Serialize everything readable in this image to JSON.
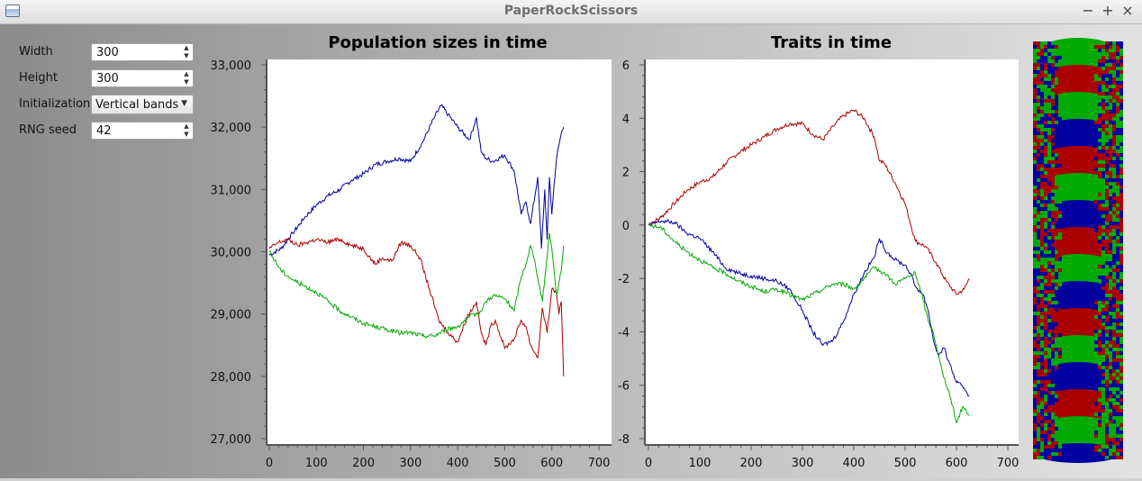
{
  "window": {
    "title": "PaperRockScissors",
    "minimize_label": "−",
    "maximize_label": "+",
    "close_label": "×"
  },
  "controls": {
    "width": {
      "label": "Width",
      "value": "300"
    },
    "height": {
      "label": "Height",
      "value": "300"
    },
    "initialization": {
      "label": "Initialization",
      "value": "Vertical bands"
    },
    "rng_seed": {
      "label": "RNG seed",
      "value": "42"
    }
  },
  "colors": {
    "series1": "#0000a0",
    "series2": "#aa0000",
    "series3": "#00aa00"
  },
  "chart_data": [
    {
      "type": "line",
      "title": "Population sizes in time",
      "xlabel": "",
      "ylabel": "",
      "xlim": [
        0,
        700
      ],
      "ylim": [
        27000,
        33000
      ],
      "x_ticks": [
        0,
        100,
        200,
        300,
        400,
        500,
        600,
        700
      ],
      "x_tick_labels": [
        "0",
        "100",
        "200",
        "300",
        "400",
        "500",
        "600",
        "700"
      ],
      "y_ticks": [
        27000,
        28000,
        29000,
        30000,
        31000,
        32000,
        33000
      ],
      "y_tick_labels": [
        "27,000",
        "28,000",
        "29,000",
        "30,000",
        "31,000",
        "32,000",
        "33,000"
      ],
      "series": [
        {
          "color": "#0000a0",
          "x": [
            0,
            25,
            50,
            75,
            100,
            125,
            150,
            175,
            200,
            225,
            250,
            275,
            300,
            325,
            350,
            365,
            380,
            400,
            425,
            440,
            450,
            460,
            475,
            500,
            520,
            535,
            545,
            555,
            570,
            578,
            585,
            590,
            595,
            600,
            605,
            610,
            620,
            625
          ],
          "y": [
            29950,
            30050,
            30300,
            30550,
            30750,
            30900,
            31000,
            31150,
            31250,
            31400,
            31450,
            31500,
            31450,
            31750,
            32150,
            32350,
            32200,
            32000,
            31800,
            32150,
            31600,
            31500,
            31450,
            31550,
            31300,
            30600,
            30800,
            30450,
            31200,
            30050,
            31000,
            30200,
            31200,
            30600,
            31100,
            31500,
            31900,
            32000
          ]
        },
        {
          "color": "#aa0000",
          "x": [
            0,
            20,
            40,
            60,
            80,
            100,
            120,
            150,
            175,
            200,
            225,
            240,
            260,
            280,
            300,
            320,
            340,
            360,
            380,
            400,
            420,
            440,
            450,
            460,
            470,
            480,
            500,
            520,
            535,
            545,
            555,
            570,
            580,
            590,
            600,
            610,
            615,
            620,
            625
          ],
          "y": [
            30050,
            30150,
            30200,
            30100,
            30150,
            30200,
            30150,
            30200,
            30100,
            30050,
            29800,
            29900,
            29850,
            30150,
            30100,
            29900,
            29400,
            28900,
            28700,
            28550,
            28950,
            29200,
            28700,
            28500,
            28800,
            28900,
            28450,
            28600,
            28900,
            28800,
            28500,
            28300,
            29100,
            28700,
            29400,
            29350,
            29000,
            29200,
            28000
          ]
        },
        {
          "color": "#00aa00",
          "x": [
            0,
            25,
            50,
            75,
            100,
            125,
            150,
            175,
            200,
            225,
            250,
            275,
            300,
            325,
            350,
            375,
            400,
            425,
            450,
            460,
            475,
            500,
            520,
            535,
            545,
            555,
            565,
            580,
            595,
            600,
            610,
            620,
            625
          ],
          "y": [
            30000,
            29700,
            29550,
            29450,
            29350,
            29200,
            29050,
            28950,
            28850,
            28800,
            28750,
            28700,
            28700,
            28650,
            28650,
            28750,
            28800,
            28950,
            29050,
            29200,
            29300,
            29250,
            29050,
            29600,
            29800,
            30100,
            29800,
            29200,
            30300,
            30050,
            29300,
            29700,
            30100
          ]
        }
      ]
    },
    {
      "type": "line",
      "title": "Traits in time",
      "xlabel": "",
      "ylabel": "",
      "xlim": [
        0,
        700
      ],
      "ylim": [
        -8,
        6
      ],
      "x_ticks": [
        0,
        100,
        200,
        300,
        400,
        500,
        600,
        700
      ],
      "x_tick_labels": [
        "0",
        "100",
        "200",
        "300",
        "400",
        "500",
        "600",
        "700"
      ],
      "y_ticks": [
        -8,
        -6,
        -4,
        -2,
        0,
        2,
        4,
        6
      ],
      "y_tick_labels": [
        "-8",
        "-6",
        "-4",
        "-2",
        "0",
        "2",
        "4",
        "6"
      ],
      "series": [
        {
          "color": "#aa0000",
          "x": [
            0,
            25,
            50,
            75,
            100,
            125,
            150,
            175,
            200,
            225,
            250,
            275,
            300,
            320,
            340,
            360,
            380,
            400,
            420,
            440,
            450,
            460,
            480,
            500,
            520,
            540,
            560,
            580,
            600,
            615,
            625
          ],
          "y": [
            0,
            0.3,
            0.8,
            1.3,
            1.6,
            1.8,
            2.3,
            2.7,
            3.0,
            3.3,
            3.6,
            3.8,
            3.8,
            3.4,
            3.2,
            3.7,
            4.1,
            4.3,
            4.0,
            3.3,
            2.4,
            2.3,
            1.6,
            0.8,
            -0.6,
            -0.8,
            -1.4,
            -2.1,
            -2.6,
            -2.4,
            -2.0
          ]
        },
        {
          "color": "#0000a0",
          "x": [
            0,
            25,
            50,
            75,
            100,
            125,
            150,
            175,
            200,
            225,
            250,
            275,
            300,
            320,
            340,
            360,
            380,
            400,
            420,
            440,
            450,
            460,
            480,
            500,
            510,
            520,
            535,
            545,
            555,
            565,
            575,
            585,
            600,
            615,
            625
          ],
          "y": [
            0,
            0.15,
            0.1,
            -0.3,
            -0.5,
            -1.0,
            -1.6,
            -1.8,
            -1.9,
            -2.0,
            -2.1,
            -2.4,
            -3.2,
            -4.0,
            -4.5,
            -4.3,
            -3.6,
            -2.6,
            -1.8,
            -1.2,
            -0.5,
            -0.9,
            -1.3,
            -1.5,
            -1.8,
            -2.3,
            -2.6,
            -3.2,
            -4.3,
            -4.9,
            -4.6,
            -5.1,
            -5.9,
            -6.1,
            -6.4
          ]
        },
        {
          "color": "#00aa00",
          "x": [
            0,
            25,
            50,
            75,
            100,
            125,
            150,
            175,
            200,
            225,
            250,
            275,
            300,
            320,
            340,
            360,
            380,
            400,
            420,
            440,
            460,
            480,
            500,
            520,
            535,
            545,
            555,
            565,
            575,
            585,
            600,
            612,
            625
          ],
          "y": [
            0,
            -0.1,
            -0.6,
            -1.0,
            -1.3,
            -1.6,
            -1.8,
            -2.1,
            -2.3,
            -2.5,
            -2.4,
            -2.6,
            -2.8,
            -2.6,
            -2.4,
            -2.2,
            -2.2,
            -2.4,
            -2.0,
            -1.6,
            -1.8,
            -2.2,
            -2.0,
            -1.8,
            -2.8,
            -3.6,
            -4.0,
            -4.9,
            -5.7,
            -6.2,
            -7.4,
            -6.8,
            -7.1
          ]
        }
      ]
    }
  ]
}
